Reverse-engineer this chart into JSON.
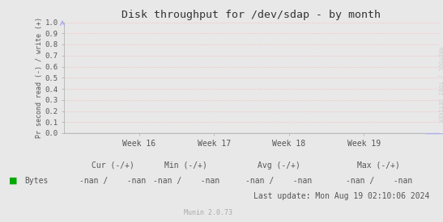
{
  "title": "Disk throughput for /dev/sdap - by month",
  "ylabel": "Pr second read (-) / write (+)",
  "ylim": [
    0.0,
    1.0
  ],
  "yticks": [
    0.0,
    0.1,
    0.2,
    0.3,
    0.4,
    0.5,
    0.6,
    0.7,
    0.8,
    0.9,
    1.0
  ],
  "xtick_labels": [
    "Week 16",
    "Week 17",
    "Week 18",
    "Week 19"
  ],
  "bg_color": "#e8e8e8",
  "plot_bg_color": "#e8e8e8",
  "grid_color": "#ffaaaa",
  "axis_color": "#aaaaaa",
  "title_color": "#333333",
  "label_color": "#555555",
  "legend_label": "Bytes",
  "legend_color": "#00aa00",
  "cur_label": "Cur (-/+)",
  "min_label": "Min (-/+)",
  "avg_label": "Avg (-/+)",
  "max_label": "Max (-/+)",
  "cur_val": "-nan /    -nan",
  "min_val": "-nan /    -nan",
  "avg_val": "-nan /    -nan",
  "max_val": "-nan /    -nan",
  "last_update": "Last update: Mon Aug 19 02:10:06 2024",
  "munin_label": "Munin 2.0.73",
  "rrdtool_label": "RRDTOOL / TOBI OETIKER",
  "arrow_color": "#aaaaee",
  "line_color": "#0000cc",
  "watermark_color": "#cccccc"
}
